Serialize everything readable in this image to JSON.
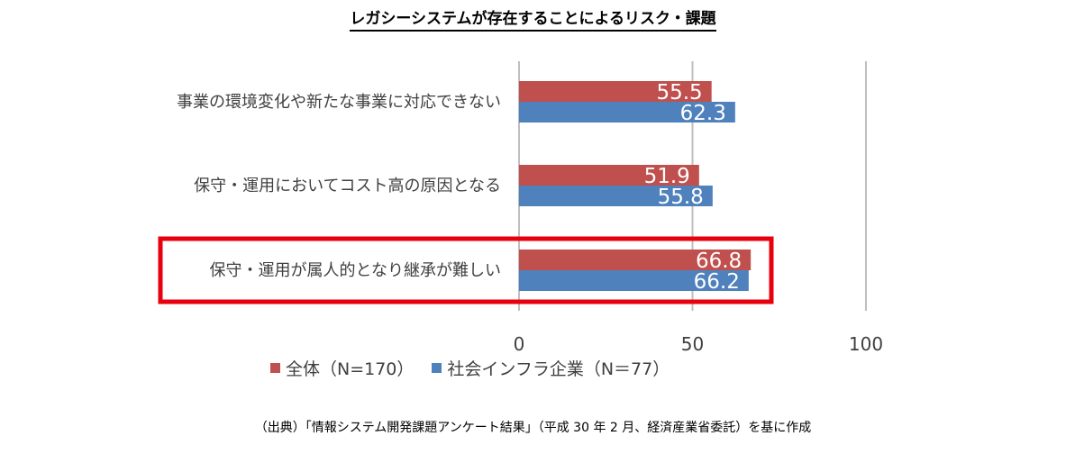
{
  "chart_data": {
    "type": "bar",
    "orientation": "horizontal",
    "title": "レガシーシステムが存在することによるリスク・課題",
    "categories": [
      "事業の環境変化や新たな事業に対応できない",
      "保守・運用においてコスト高の原因となる",
      "保守・運用が属人的となり継承が難しい"
    ],
    "series": [
      {
        "name": "全体（N=170）",
        "color": "#c0504d",
        "values": [
          55.5,
          51.9,
          66.8
        ]
      },
      {
        "name": "社会インフラ企業（N＝77）",
        "color": "#4f81bd",
        "values": [
          62.3,
          55.8,
          66.2
        ]
      }
    ],
    "xlim": [
      0,
      100
    ],
    "xticks": [
      "0",
      "50",
      "100"
    ],
    "grid": true,
    "legend": "bottom",
    "highlighted_category": 2,
    "highlight_color": "#e8000d"
  },
  "source_note": "（出典）「情報システム開発課題アンケート結果」（平成 30 年 2 月、経済産業省委託）を基に作成"
}
